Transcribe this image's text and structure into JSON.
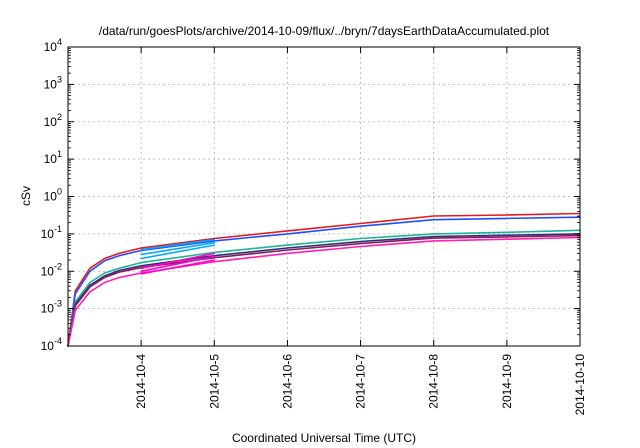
{
  "chart_data": {
    "type": "line",
    "title": "/data/run/goesPlots/archive/2014-10-09/flux/../bryn/7daysEarthDataAccumulated.plot",
    "xlabel": "Coordinated Universal Time (UTC)",
    "ylabel": "cSv",
    "y_scale": "log",
    "ylim": [
      0.0001,
      10000
    ],
    "y_ticks": [
      {
        "base": "10",
        "exp": "-4",
        "value": 0.0001
      },
      {
        "base": "10",
        "exp": "-3",
        "value": 0.001
      },
      {
        "base": "10",
        "exp": "-2",
        "value": 0.01
      },
      {
        "base": "10",
        "exp": "-1",
        "value": 0.1
      },
      {
        "base": "10",
        "exp": "0",
        "value": 1
      },
      {
        "base": "10",
        "exp": "1",
        "value": 10
      },
      {
        "base": "10",
        "exp": "2",
        "value": 100
      },
      {
        "base": "10",
        "exp": "3",
        "value": 1000
      },
      {
        "base": "10",
        "exp": "4",
        "value": 10000
      }
    ],
    "xlim": [
      "2014-10-03",
      "2014-10-10"
    ],
    "x_ticks": [
      "2014-10-4",
      "2014-10-5",
      "2014-10-6",
      "2014-10-7",
      "2014-10-8",
      "2014-10-9",
      "2014-10-10"
    ],
    "x_tick_dates": [
      "2014-10-04",
      "2014-10-05",
      "2014-10-06",
      "2014-10-07",
      "2014-10-08",
      "2014-10-09",
      "2014-10-10"
    ],
    "grid": true,
    "series": [
      {
        "color": "#e41a1c",
        "x": [
          "2014-10-03",
          "2014-10-03T02:24",
          "2014-10-03T07:12",
          "2014-10-03T12:00",
          "2014-10-03T16:48",
          "2014-10-04",
          "2014-10-05",
          "2014-10-06",
          "2014-10-07",
          "2014-10-08",
          "2014-10-09",
          "2014-10-10"
        ],
        "values": [
          0.0001,
          0.003,
          0.012,
          0.022,
          0.03,
          0.042,
          0.075,
          0.12,
          0.19,
          0.3,
          0.32,
          0.35
        ]
      },
      {
        "color": "#1f4fff",
        "x": [
          "2014-10-03",
          "2014-10-03T02:24",
          "2014-10-03T07:12",
          "2014-10-03T12:00",
          "2014-10-03T16:48",
          "2014-10-04",
          "2014-10-05",
          "2014-10-06",
          "2014-10-07",
          "2014-10-08",
          "2014-10-09",
          "2014-10-10"
        ],
        "values": [
          0.0001,
          0.0025,
          0.01,
          0.019,
          0.026,
          0.036,
          0.065,
          0.1,
          0.16,
          0.24,
          0.26,
          0.28
        ]
      },
      {
        "color": "#1fb39a",
        "x": [
          "2014-10-03",
          "2014-10-03T02:24",
          "2014-10-03T07:12",
          "2014-10-03T12:00",
          "2014-10-03T16:48",
          "2014-10-04",
          "2014-10-05",
          "2014-10-06",
          "2014-10-07",
          "2014-10-08",
          "2014-10-09",
          "2014-10-10"
        ],
        "values": [
          0.0001,
          0.0015,
          0.005,
          0.009,
          0.012,
          0.017,
          0.032,
          0.05,
          0.075,
          0.1,
          0.11,
          0.125
        ]
      },
      {
        "color": "#2e2e7a",
        "x": [
          "2014-10-03",
          "2014-10-03T02:24",
          "2014-10-03T07:12",
          "2014-10-03T12:00",
          "2014-10-03T16:48",
          "2014-10-04",
          "2014-10-05",
          "2014-10-06",
          "2014-10-07",
          "2014-10-08",
          "2014-10-09",
          "2014-10-10"
        ],
        "values": [
          0.0001,
          0.0013,
          0.0042,
          0.0075,
          0.0105,
          0.014,
          0.026,
          0.042,
          0.062,
          0.085,
          0.092,
          0.1
        ]
      },
      {
        "color": "#8a1a5a",
        "x": [
          "2014-10-03",
          "2014-10-03T02:24",
          "2014-10-03T07:12",
          "2014-10-03T12:00",
          "2014-10-03T16:48",
          "2014-10-04",
          "2014-10-05",
          "2014-10-06",
          "2014-10-07",
          "2014-10-08",
          "2014-10-09",
          "2014-10-10"
        ],
        "values": [
          0.0001,
          0.0012,
          0.0038,
          0.0068,
          0.0095,
          0.0125,
          0.023,
          0.037,
          0.055,
          0.077,
          0.083,
          0.09
        ]
      },
      {
        "color": "#ff1fb0",
        "x": [
          "2014-10-03",
          "2014-10-03T02:24",
          "2014-10-03T07:12",
          "2014-10-03T12:00",
          "2014-10-03T16:48",
          "2014-10-04",
          "2014-10-05",
          "2014-10-06",
          "2014-10-07",
          "2014-10-08",
          "2014-10-09",
          "2014-10-10"
        ],
        "values": [
          0.0001,
          0.0009,
          0.0028,
          0.005,
          0.0068,
          0.009,
          0.018,
          0.03,
          0.046,
          0.065,
          0.072,
          0.08
        ]
      },
      {
        "color": "#00aaff",
        "x": [
          "2014-10-04",
          "2014-10-05"
        ],
        "values": [
          0.038,
          0.07
        ]
      },
      {
        "color": "#00aaff",
        "x": [
          "2014-10-04",
          "2014-10-05"
        ],
        "values": [
          0.028,
          0.058
        ]
      },
      {
        "color": "#00aaff",
        "x": [
          "2014-10-04",
          "2014-10-05"
        ],
        "values": [
          0.022,
          0.05
        ]
      },
      {
        "color": "#ff00cc",
        "x": [
          "2014-10-04",
          "2014-10-05"
        ],
        "values": [
          0.012,
          0.03
        ]
      },
      {
        "color": "#ff00cc",
        "x": [
          "2014-10-04",
          "2014-10-05"
        ],
        "values": [
          0.01,
          0.025
        ]
      },
      {
        "color": "#ff00cc",
        "x": [
          "2014-10-04",
          "2014-10-05"
        ],
        "values": [
          0.0085,
          0.02
        ]
      }
    ]
  }
}
